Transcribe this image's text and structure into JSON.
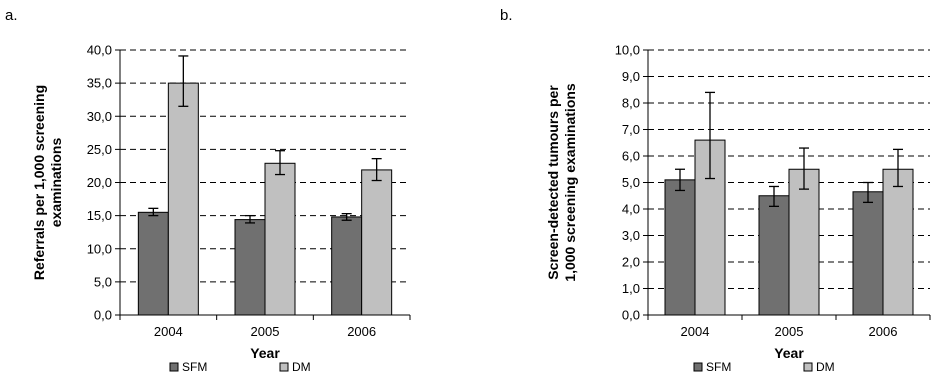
{
  "colors": {
    "sfm": "#707070",
    "dm": "#c0c0c0",
    "grid": "#000000"
  },
  "chart_data": [
    {
      "panel_label": "a.",
      "type": "bar",
      "categories": [
        "2004",
        "2005",
        "2006"
      ],
      "xlabel": "Year",
      "ylabel": [
        "Referrals per 1,000 screening",
        "examinations"
      ],
      "ylim": [
        0,
        40
      ],
      "ytick_step": 5,
      "yticks": [
        "0,0",
        "5,0",
        "10,0",
        "15,0",
        "20,0",
        "25,0",
        "30,0",
        "35,0",
        "40,0"
      ],
      "grid": "dashed horizontal",
      "legend_position": "bottom",
      "series": [
        {
          "name": "SFM",
          "values": [
            15.5,
            14.4,
            14.8
          ],
          "err_low": [
            15.0,
            13.9,
            14.3
          ],
          "err_high": [
            16.1,
            15.0,
            15.3
          ]
        },
        {
          "name": "DM",
          "values": [
            35.0,
            22.9,
            21.9
          ],
          "err_low": [
            31.5,
            21.2,
            20.3
          ],
          "err_high": [
            39.1,
            24.8,
            23.6
          ]
        }
      ]
    },
    {
      "panel_label": "b.",
      "type": "bar",
      "categories": [
        "2004",
        "2005",
        "2006"
      ],
      "xlabel": "Year",
      "ylabel": [
        "Screen-detected tumours per",
        "1,000 screening examinations"
      ],
      "ylim": [
        0,
        10
      ],
      "ytick_step": 1,
      "yticks": [
        "0,0",
        "1,0",
        "2,0",
        "3,0",
        "4,0",
        "5,0",
        "6,0",
        "7,0",
        "8,0",
        "9,0",
        "10,0"
      ],
      "grid": "dashed horizontal",
      "legend_position": "bottom",
      "series": [
        {
          "name": "SFM",
          "values": [
            5.1,
            4.5,
            4.65
          ],
          "err_low": [
            4.7,
            4.1,
            4.25
          ],
          "err_high": [
            5.5,
            4.85,
            5.0
          ]
        },
        {
          "name": "DM",
          "values": [
            6.6,
            5.5,
            5.5
          ],
          "err_low": [
            5.15,
            4.75,
            4.85
          ],
          "err_high": [
            8.4,
            6.3,
            6.25
          ]
        }
      ]
    }
  ]
}
